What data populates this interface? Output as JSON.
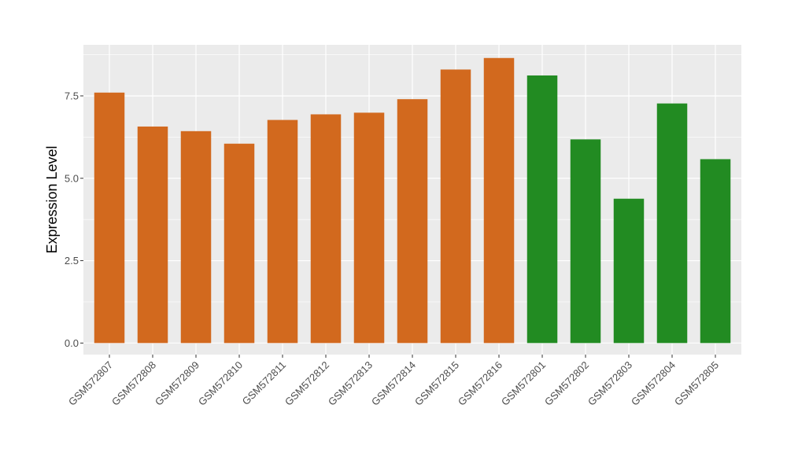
{
  "chart_data": {
    "type": "bar",
    "title": "",
    "xlabel": "",
    "ylabel": "Expression Level",
    "ylim": [
      -0.35,
      9.05
    ],
    "yticks": [
      0.0,
      2.5,
      5.0,
      7.5
    ],
    "ytick_labels": [
      "0.0",
      "2.5",
      "5.0",
      "7.5"
    ],
    "grid": true,
    "legend": "none",
    "categories": [
      "GSM572807",
      "GSM572808",
      "GSM572809",
      "GSM572810",
      "GSM572811",
      "GSM572812",
      "GSM572813",
      "GSM572814",
      "GSM572815",
      "GSM572816",
      "GSM572801",
      "GSM572802",
      "GSM572803",
      "GSM572804",
      "GSM572805"
    ],
    "values": [
      7.6,
      6.57,
      6.43,
      6.05,
      6.77,
      6.94,
      6.99,
      7.4,
      8.3,
      8.65,
      8.12,
      6.18,
      4.38,
      7.27,
      5.58
    ],
    "groups": [
      "orange",
      "orange",
      "orange",
      "orange",
      "orange",
      "orange",
      "orange",
      "orange",
      "orange",
      "orange",
      "green",
      "green",
      "green",
      "green",
      "green"
    ],
    "colors": {
      "orange": "#D2691E",
      "green": "#228B22",
      "panel": "#EBEBEB",
      "grid": "#FFFFFF"
    }
  }
}
